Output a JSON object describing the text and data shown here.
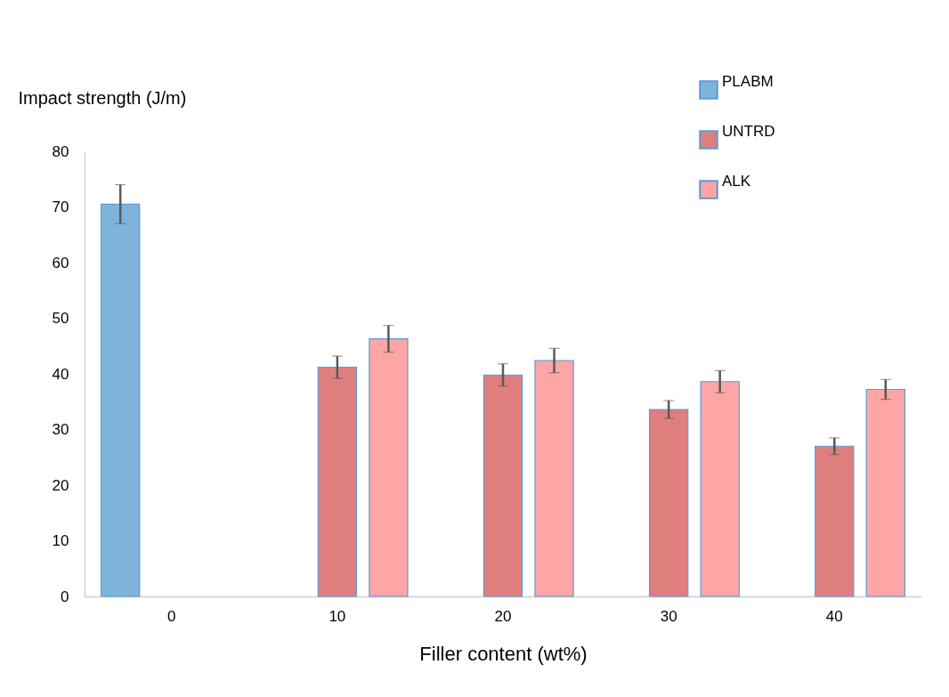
{
  "chart_data": {
    "type": "bar",
    "xlabel": "Filler content (wt%)",
    "ylabel": "Impact strength (J/m)",
    "categories": [
      "0",
      "10",
      "20",
      "30",
      "40"
    ],
    "series": [
      {
        "name": "PLABM",
        "color": "#7eb4dc",
        "values": [
          70.5,
          null,
          null,
          null,
          null
        ],
        "errors": [
          3.5,
          null,
          null,
          null,
          null
        ]
      },
      {
        "name": "UNTRD",
        "color": "#de7f7e",
        "values": [
          null,
          41.2,
          39.8,
          33.6,
          27
        ],
        "errors": [
          null,
          2,
          2,
          1.6,
          1.5
        ]
      },
      {
        "name": "ALK",
        "color": "#fea5a5",
        "values": [
          null,
          46.3,
          42.4,
          38.6,
          37.2
        ],
        "errors": [
          null,
          2.4,
          2.2,
          2,
          1.8
        ]
      }
    ],
    "ylim": [
      0,
      80
    ],
    "yticks": [
      0,
      10,
      20,
      30,
      40,
      50,
      60,
      70,
      80
    ],
    "grid": false,
    "legend": "top right"
  }
}
